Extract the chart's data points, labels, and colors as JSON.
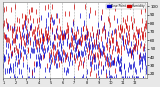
{
  "background_color": "#e8e8e8",
  "plot_bg_color": "#ffffff",
  "legend_blue_label": "Dew Point",
  "legend_red_label": "Humidity",
  "ylim": [
    15,
    105
  ],
  "yticks": [
    20,
    30,
    40,
    50,
    60,
    70,
    80,
    90,
    100
  ],
  "grid_color": "#aaaaaa",
  "color_high": "#cc0000",
  "color_low": "#0000cc",
  "n_points": 365,
  "seed": 42,
  "figsize": [
    1.6,
    0.87
  ],
  "dpi": 100
}
